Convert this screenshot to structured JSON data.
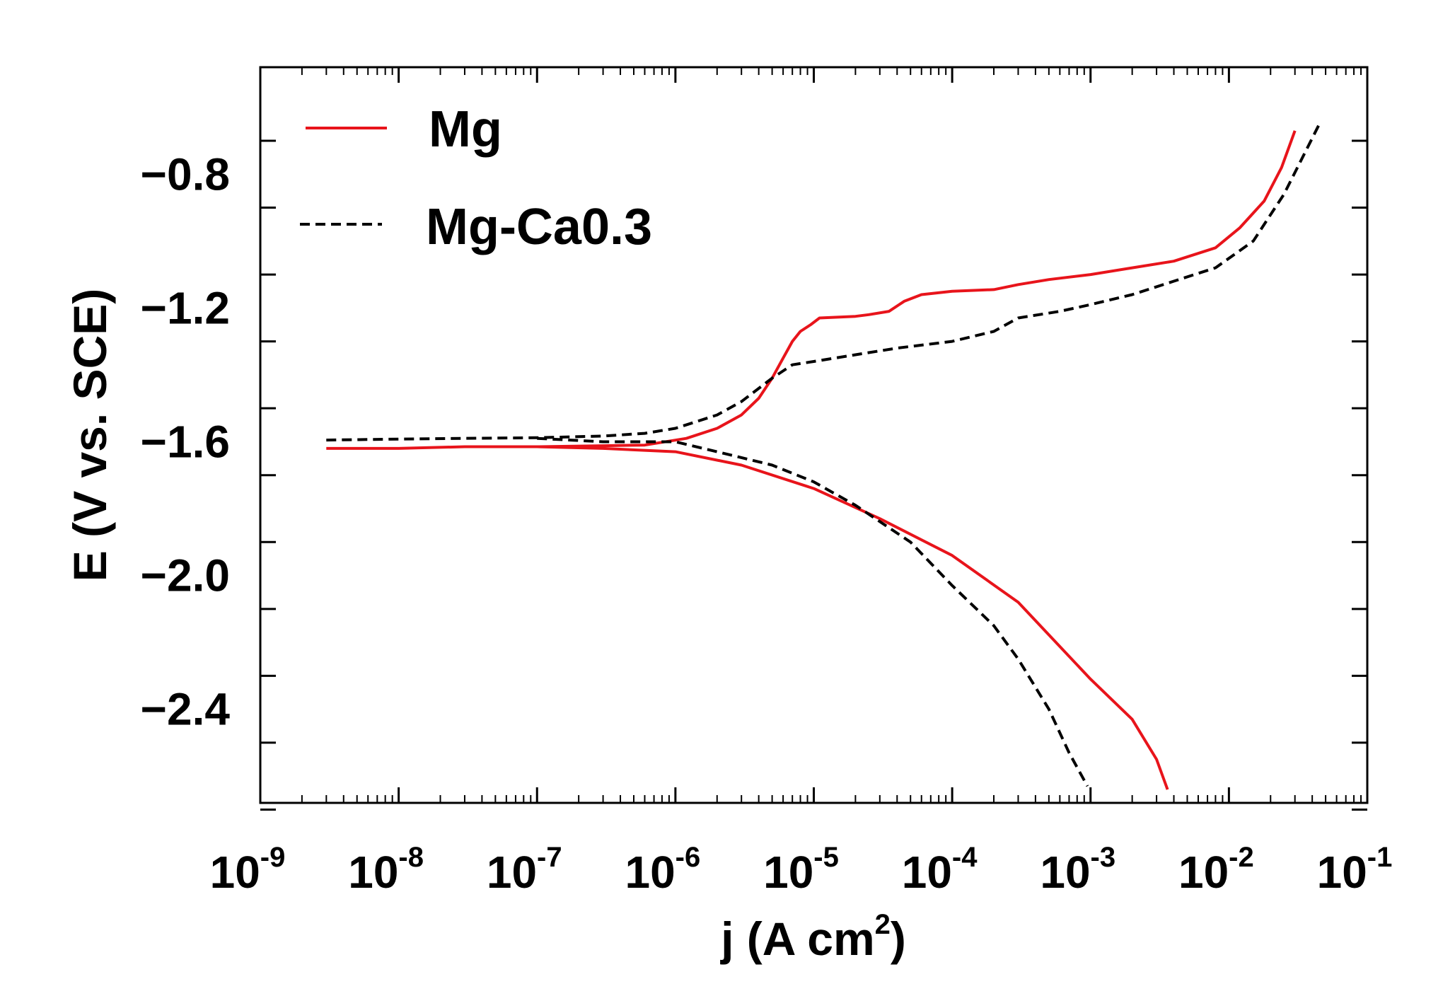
{
  "chart_data": {
    "type": "line",
    "title": "",
    "xlabel": "j (A cm",
    "xlabel_sup": "2",
    "xlabel_close": ")",
    "ylabel": "E (V vs. SCE)",
    "xscale": "log",
    "xlim": [
      1e-09,
      0.1
    ],
    "ylim": [
      -2.68,
      -0.48
    ],
    "x_ticks": [
      {
        "base": "10",
        "exp": "-9"
      },
      {
        "base": "10",
        "exp": "-8"
      },
      {
        "base": "10",
        "exp": "-7"
      },
      {
        "base": "10",
        "exp": "-6"
      },
      {
        "base": "10",
        "exp": "-5"
      },
      {
        "base": "10",
        "exp": "-4"
      },
      {
        "base": "10",
        "exp": "-3"
      },
      {
        "base": "10",
        "exp": "-2"
      },
      {
        "base": "10",
        "exp": "-1"
      }
    ],
    "y_ticks": [
      {
        "value": -0.8,
        "label": "−0.8"
      },
      {
        "value": -1.2,
        "label": "−1.2"
      },
      {
        "value": -1.6,
        "label": "−1.6"
      },
      {
        "value": -2.0,
        "label": "−2.0"
      },
      {
        "value": -2.4,
        "label": "−2.4"
      }
    ],
    "legend_position": "top-left",
    "series": [
      {
        "name": "Mg",
        "color": "#e8141b",
        "style": "solid",
        "anodic": {
          "x": [
            3e-09,
            1e-08,
            3e-08,
            1e-07,
            3e-07,
            6e-07,
            1.2e-06,
            2e-06,
            3e-06,
            4e-06,
            5e-06,
            6e-06,
            7e-06,
            8e-06,
            9.5e-06,
            1.1e-05,
            2e-05,
            2.5e-05,
            3.5e-05,
            4.5e-05,
            6e-05,
            0.0001,
            0.0002,
            0.0003,
            0.0005,
            0.001,
            0.002,
            0.004,
            0.008,
            0.012,
            0.018,
            0.024,
            0.03
          ],
          "y": [
            -1.62,
            -1.62,
            -1.615,
            -1.615,
            -1.612,
            -1.61,
            -1.59,
            -1.56,
            -1.52,
            -1.47,
            -1.41,
            -1.35,
            -1.3,
            -1.27,
            -1.25,
            -1.23,
            -1.225,
            -1.22,
            -1.21,
            -1.18,
            -1.16,
            -1.15,
            -1.145,
            -1.13,
            -1.115,
            -1.1,
            -1.08,
            -1.06,
            -1.02,
            -0.96,
            -0.88,
            -0.78,
            -0.67
          ]
        },
        "cathodic": {
          "x": [
            1e-07,
            3e-07,
            1e-06,
            3e-06,
            1e-05,
            3e-05,
            0.0001,
            0.0003,
            0.001,
            0.002,
            0.003,
            0.0036
          ],
          "y": [
            -1.615,
            -1.62,
            -1.63,
            -1.67,
            -1.74,
            -1.83,
            -1.94,
            -2.08,
            -2.31,
            -2.43,
            -2.55,
            -2.64
          ]
        }
      },
      {
        "name": "Mg-Ca0.3",
        "color": "#000000",
        "style": "dashed",
        "anodic": {
          "x": [
            3e-09,
            1e-08,
            3e-08,
            1e-07,
            3e-07,
            6e-07,
            1e-06,
            2e-06,
            3e-06,
            5e-06,
            7e-06,
            1e-05,
            2e-05,
            4e-05,
            0.0001,
            0.0002,
            0.0003,
            0.0006,
            0.001,
            0.002,
            0.004,
            0.008,
            0.015,
            0.025,
            0.035,
            0.045
          ],
          "y": [
            -1.595,
            -1.592,
            -1.59,
            -1.588,
            -1.583,
            -1.575,
            -1.56,
            -1.52,
            -1.48,
            -1.41,
            -1.37,
            -1.36,
            -1.34,
            -1.32,
            -1.3,
            -1.27,
            -1.23,
            -1.21,
            -1.19,
            -1.16,
            -1.12,
            -1.08,
            -1.0,
            -0.86,
            -0.74,
            -0.65
          ]
        },
        "cathodic": {
          "x": [
            1e-07,
            3e-07,
            1e-06,
            2e-06,
            5e-06,
            1e-05,
            2e-05,
            5e-05,
            0.0001,
            0.0002,
            0.0003,
            0.0005,
            0.0007,
            0.00095
          ],
          "y": [
            -1.59,
            -1.6,
            -1.6,
            -1.63,
            -1.67,
            -1.72,
            -1.79,
            -1.9,
            -2.03,
            -2.15,
            -2.25,
            -2.4,
            -2.53,
            -2.63
          ]
        }
      }
    ]
  }
}
